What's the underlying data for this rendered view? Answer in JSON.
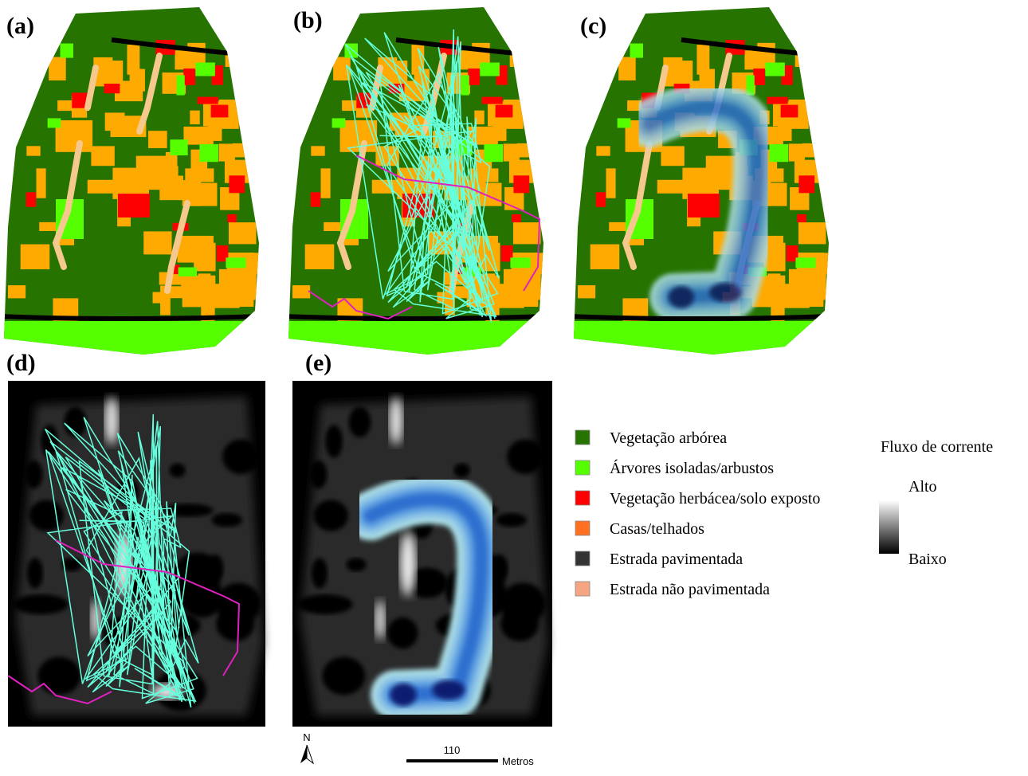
{
  "panel_labels": [
    "(a)",
    "(b)",
    "(c)",
    "(d)",
    "(e)"
  ],
  "legend": {
    "items": [
      {
        "label": "Vegetação arbórea",
        "color": "#267300"
      },
      {
        "label": "Árvores isoladas/arbustos",
        "color": "#55ff00"
      },
      {
        "label": "Vegetação herbácea/solo exposto",
        "color": "#ff0000"
      },
      {
        "label": "Casas/telhados",
        "color": "#ff7020"
      },
      {
        "label": "Estrada pavimentada",
        "color": "#343434"
      },
      {
        "label": "Estrada não pavimentada",
        "color": "#f5a582"
      }
    ]
  },
  "current_flow": {
    "title": "Fluxo de corrente",
    "high": "Alto",
    "low": "Baixo"
  },
  "scale_bar": {
    "north": "N",
    "distance": 110,
    "unit": "Metros"
  }
}
